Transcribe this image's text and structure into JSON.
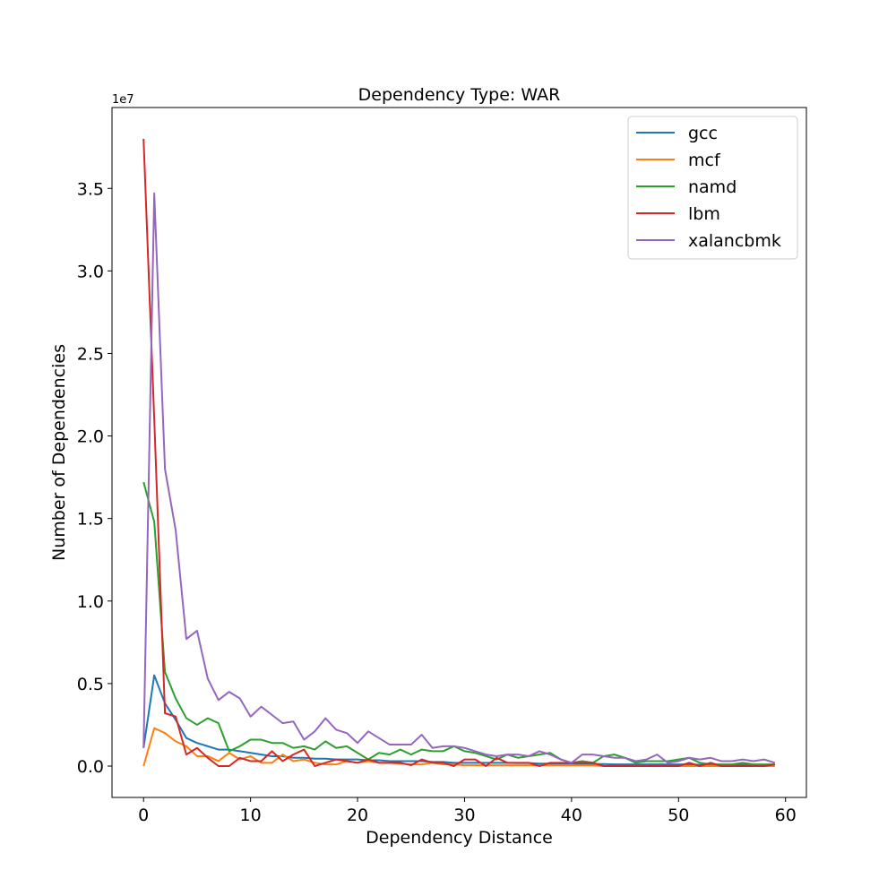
{
  "chart_data": {
    "type": "line",
    "title": "Dependency Type: WAR",
    "xlabel": "Dependency Distance",
    "ylabel": "Number of Dependencies",
    "y_scale_label": "1e7",
    "xlim": [
      -2.95,
      61.95
    ],
    "ylim": [
      -0.19,
      3.99
    ],
    "y_multiplier": 10000000,
    "x_ticks": [
      0,
      10,
      20,
      30,
      40,
      50,
      60
    ],
    "x_tick_labels": [
      "0",
      "10",
      "20",
      "30",
      "40",
      "50",
      "60"
    ],
    "y_ticks": [
      0,
      0.5,
      1.0,
      1.5,
      2.0,
      2.5,
      3.0,
      3.5
    ],
    "y_tick_labels": [
      "0.0",
      "0.5",
      "1.0",
      "1.5",
      "2.0",
      "2.5",
      "3.0",
      "3.5"
    ],
    "grid": false,
    "legend_position": "top-right",
    "x": [
      0,
      1,
      2,
      3,
      4,
      5,
      6,
      7,
      8,
      9,
      10,
      11,
      12,
      13,
      14,
      15,
      16,
      17,
      18,
      19,
      20,
      21,
      22,
      23,
      24,
      25,
      26,
      27,
      28,
      29,
      30,
      31,
      32,
      33,
      34,
      35,
      36,
      37,
      38,
      39,
      40,
      41,
      42,
      43,
      44,
      45,
      46,
      47,
      48,
      49,
      50,
      51,
      52,
      53,
      54,
      55,
      56,
      57,
      58,
      59
    ],
    "series": [
      {
        "name": "gcc",
        "color": "#1f77b4",
        "values": [
          0.11,
          0.55,
          0.38,
          0.28,
          0.17,
          0.14,
          0.12,
          0.1,
          0.1,
          0.09,
          0.08,
          0.07,
          0.06,
          0.06,
          0.05,
          0.05,
          0.045,
          0.045,
          0.04,
          0.04,
          0.04,
          0.035,
          0.035,
          0.03,
          0.03,
          0.03,
          0.03,
          0.025,
          0.025,
          0.02,
          0.02,
          0.02,
          0.02,
          0.02,
          0.02,
          0.018,
          0.018,
          0.015,
          0.015,
          0.015,
          0.015,
          0.012,
          0.012,
          0.012,
          0.01,
          0.01,
          0.01,
          0.01,
          0.01,
          0.01,
          0.01,
          0.01,
          0.008,
          0.008,
          0.008,
          0.008,
          0.008,
          0.008,
          0.008,
          0.008
        ]
      },
      {
        "name": "mcf",
        "color": "#ff7f0e",
        "values": [
          0.0,
          0.23,
          0.2,
          0.15,
          0.12,
          0.06,
          0.06,
          0.03,
          0.08,
          0.04,
          0.06,
          0.02,
          0.02,
          0.07,
          0.03,
          0.04,
          0.02,
          0.01,
          0.01,
          0.03,
          0.02,
          0.03,
          0.02,
          0.02,
          0.015,
          0.01,
          0.01,
          0.02,
          0.01,
          0.01,
          0.005,
          0.005,
          0.005,
          0.005,
          0.005,
          0.005,
          0.005,
          0.005,
          0.005,
          0.005,
          0.005,
          0.005,
          0.005,
          0.0,
          0.0,
          0.0,
          0.0,
          0.0,
          0.0,
          0.0,
          0.0,
          0.0,
          0.0,
          0.0,
          0.0,
          0.0,
          0.0,
          0.0,
          0.0,
          0.0
        ]
      },
      {
        "name": "namd",
        "color": "#2ca02c",
        "values": [
          1.72,
          1.48,
          0.57,
          0.41,
          0.29,
          0.25,
          0.29,
          0.26,
          0.09,
          0.12,
          0.16,
          0.16,
          0.14,
          0.14,
          0.11,
          0.12,
          0.1,
          0.15,
          0.11,
          0.12,
          0.08,
          0.04,
          0.08,
          0.07,
          0.1,
          0.07,
          0.1,
          0.09,
          0.09,
          0.12,
          0.09,
          0.08,
          0.06,
          0.04,
          0.07,
          0.05,
          0.06,
          0.07,
          0.08,
          0.04,
          0.02,
          0.03,
          0.02,
          0.06,
          0.07,
          0.05,
          0.02,
          0.03,
          0.03,
          0.03,
          0.04,
          0.05,
          0.02,
          0.01,
          0.01,
          0.01,
          0.02,
          0.01,
          0.01,
          0.01
        ]
      },
      {
        "name": "lbm",
        "color": "#d62728",
        "values": [
          3.8,
          2.1,
          0.32,
          0.3,
          0.07,
          0.11,
          0.05,
          0.0,
          0.0,
          0.05,
          0.03,
          0.03,
          0.09,
          0.03,
          0.07,
          0.1,
          0.0,
          0.02,
          0.04,
          0.03,
          0.02,
          0.04,
          0.02,
          0.02,
          0.02,
          0.005,
          0.04,
          0.02,
          0.02,
          0.0,
          0.04,
          0.04,
          0.0,
          0.05,
          0.02,
          0.02,
          0.02,
          0.0,
          0.02,
          0.02,
          0.02,
          0.02,
          0.02,
          0.0,
          0.0,
          0.0,
          0.0,
          0.0,
          0.0,
          0.0,
          0.0,
          0.02,
          0.0,
          0.02,
          0.0,
          0.0,
          0.0,
          0.0,
          0.0,
          0.01
        ]
      },
      {
        "name": "xalancbmk",
        "color": "#9467bd",
        "values": [
          0.11,
          3.47,
          1.8,
          1.43,
          0.77,
          0.82,
          0.53,
          0.4,
          0.45,
          0.41,
          0.3,
          0.36,
          0.31,
          0.26,
          0.27,
          0.16,
          0.21,
          0.29,
          0.22,
          0.2,
          0.14,
          0.21,
          0.17,
          0.13,
          0.13,
          0.13,
          0.19,
          0.11,
          0.12,
          0.12,
          0.11,
          0.09,
          0.07,
          0.06,
          0.07,
          0.07,
          0.06,
          0.09,
          0.07,
          0.04,
          0.02,
          0.07,
          0.07,
          0.06,
          0.05,
          0.05,
          0.03,
          0.04,
          0.07,
          0.02,
          0.03,
          0.05,
          0.04,
          0.05,
          0.03,
          0.03,
          0.04,
          0.03,
          0.04,
          0.02
        ]
      }
    ]
  }
}
